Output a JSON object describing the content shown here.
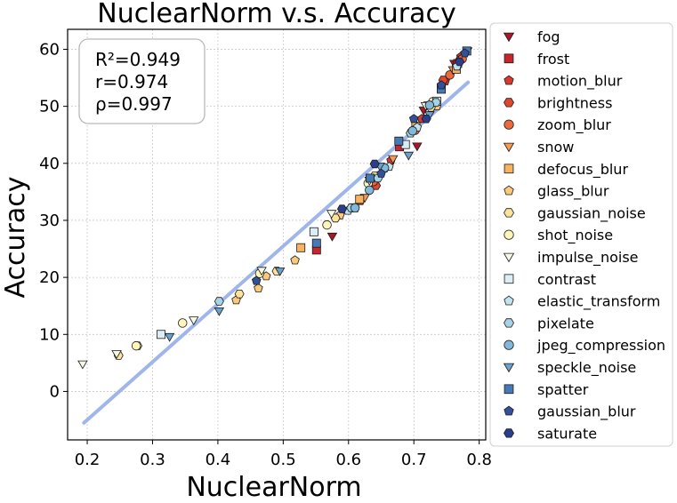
{
  "chart_data": {
    "type": "scatter",
    "title": "NuclearNorm  v.s.  Accuracy",
    "xlabel": "NuclearNorm",
    "ylabel": "Accuracy",
    "xlim": [
      0.17,
      0.81
    ],
    "ylim": [
      -8.5,
      63.5
    ],
    "xticks": [
      0.2,
      0.3,
      0.4,
      0.5,
      0.6,
      0.7,
      0.8
    ],
    "xtick_labels": [
      "0.2",
      "0.3",
      "0.4",
      "0.5",
      "0.6",
      "0.7",
      "0.8"
    ],
    "yticks": [
      0,
      10,
      20,
      30,
      40,
      50,
      60
    ],
    "ytick_labels": [
      "0",
      "10",
      "20",
      "30",
      "40",
      "50",
      "60"
    ],
    "grid": true,
    "legend_position": "outside-right",
    "stats": [
      "R²=0.949",
      "r=0.974",
      "ρ=0.997"
    ],
    "fit_line": {
      "x": [
        0.195,
        0.783
      ],
      "y": [
        -5.5,
        54.2
      ],
      "color": "#9fb6ea"
    },
    "series": [
      {
        "name": "fog",
        "marker": "triangle-down",
        "color": "#a8182a",
        "points": [
          [
            0.575,
            27.2
          ],
          [
            0.705,
            43.0
          ],
          [
            0.715,
            49.3
          ],
          [
            0.762,
            57.5
          ],
          [
            0.782,
            59.7
          ]
        ]
      },
      {
        "name": "frost",
        "marker": "square",
        "color": "#c6262c",
        "points": [
          [
            0.551,
            24.8
          ],
          [
            0.608,
            32.2
          ],
          [
            0.678,
            42.9
          ],
          [
            0.742,
            53.2
          ],
          [
            0.767,
            57.5
          ]
        ]
      },
      {
        "name": "motion_blur",
        "marker": "pentagon",
        "color": "#d73a2f",
        "points": [
          [
            0.618,
            33.4
          ],
          [
            0.665,
            40.5
          ],
          [
            0.712,
            47.8
          ],
          [
            0.748,
            54.4
          ],
          [
            0.772,
            58.7
          ]
        ]
      },
      {
        "name": "brightness",
        "marker": "hexagon",
        "color": "#e0472f",
        "points": [
          [
            0.642,
            36.1
          ],
          [
            0.745,
            54.6
          ],
          [
            0.77,
            58.1
          ]
        ]
      },
      {
        "name": "zoom_blur",
        "marker": "circle",
        "color": "#ec6a3c",
        "points": [
          [
            0.638,
            36.8
          ],
          [
            0.702,
            45.8
          ],
          [
            0.755,
            55.5
          ],
          [
            0.774,
            58.3
          ]
        ]
      },
      {
        "name": "snow",
        "marker": "triangle-down",
        "color": "#f79a56",
        "points": [
          [
            0.625,
            34.0
          ],
          [
            0.668,
            40.8
          ],
          [
            0.722,
            50.2
          ],
          [
            0.76,
            56.4
          ]
        ]
      },
      {
        "name": "defocus_blur",
        "marker": "square",
        "color": "#f7b35f",
        "points": [
          [
            0.527,
            25.2
          ],
          [
            0.617,
            33.7
          ],
          [
            0.703,
            46.5
          ],
          [
            0.765,
            56.5
          ]
        ]
      },
      {
        "name": "glass_blur",
        "marker": "pentagon",
        "color": "#fcc97a",
        "points": [
          [
            0.428,
            16.0
          ],
          [
            0.462,
            18.1
          ],
          [
            0.474,
            20.2
          ],
          [
            0.518,
            23.0
          ],
          [
            0.587,
            30.9
          ],
          [
            0.655,
            39.1
          ],
          [
            0.735,
            50.0
          ]
        ]
      },
      {
        "name": "gaussian_noise",
        "marker": "hexagon",
        "color": "#fde39a",
        "points": [
          [
            0.248,
            6.3
          ],
          [
            0.277,
            8.0
          ],
          [
            0.433,
            17.1
          ],
          [
            0.49,
            21.1
          ],
          [
            0.58,
            30.4
          ],
          [
            0.64,
            37.8
          ],
          [
            0.726,
            49.8
          ]
        ]
      },
      {
        "name": "shot_noise",
        "marker": "circle",
        "color": "#fef6b8",
        "points": [
          [
            0.275,
            8.0
          ],
          [
            0.346,
            12.0
          ],
          [
            0.464,
            20.7
          ],
          [
            0.567,
            29.2
          ],
          [
            0.63,
            36.5
          ],
          [
            0.729,
            50.8
          ]
        ]
      },
      {
        "name": "impulse_noise",
        "marker": "triangle-down",
        "color": "#f4f9e4",
        "points": [
          [
            0.193,
            4.8
          ],
          [
            0.245,
            6.6
          ],
          [
            0.363,
            12.5
          ],
          [
            0.467,
            21.2
          ],
          [
            0.574,
            31.2
          ],
          [
            0.632,
            37.0
          ],
          [
            0.718,
            50.1
          ]
        ]
      },
      {
        "name": "contrast",
        "marker": "square",
        "color": "#dbeef5",
        "points": [
          [
            0.313,
            10.0
          ],
          [
            0.547,
            28.0
          ],
          [
            0.687,
            43.3
          ],
          [
            0.735,
            50.9
          ]
        ]
      },
      {
        "name": "elastic_transform",
        "marker": "pentagon",
        "color": "#c1e3ee",
        "points": [
          [
            0.599,
            31.7
          ],
          [
            0.662,
            39.4
          ],
          [
            0.705,
            46.3
          ],
          [
            0.766,
            57.0
          ]
        ]
      },
      {
        "name": "pixelate",
        "marker": "hexagon",
        "color": "#a6d3e6",
        "points": [
          [
            0.402,
            15.8
          ],
          [
            0.604,
            32.2
          ],
          [
            0.645,
            37.4
          ],
          [
            0.695,
            45.3
          ],
          [
            0.734,
            50.7
          ]
        ]
      },
      {
        "name": "jpeg_compression",
        "marker": "circle",
        "color": "#82b8d9",
        "points": [
          [
            0.61,
            32.2
          ],
          [
            0.632,
            35.3
          ],
          [
            0.655,
            39.2
          ],
          [
            0.698,
            45.7
          ],
          [
            0.724,
            50.2
          ]
        ]
      },
      {
        "name": "speckle_noise",
        "marker": "triangle-down",
        "color": "#6aa1cd",
        "points": [
          [
            0.326,
            9.6
          ],
          [
            0.402,
            14.1
          ],
          [
            0.495,
            21.1
          ],
          [
            0.648,
            39.5
          ],
          [
            0.692,
            41.4
          ],
          [
            0.724,
            48.5
          ]
        ]
      },
      {
        "name": "spatter",
        "marker": "square",
        "color": "#4779b5",
        "points": [
          [
            0.551,
            26.0
          ],
          [
            0.633,
            37.4
          ],
          [
            0.677,
            43.9
          ],
          [
            0.742,
            53.0
          ],
          [
            0.781,
            59.7
          ]
        ]
      },
      {
        "name": "gaussian_blur",
        "marker": "pentagon",
        "color": "#34509a",
        "points": [
          [
            0.459,
            19.4
          ],
          [
            0.65,
            38.2
          ],
          [
            0.7,
            47.8
          ],
          [
            0.742,
            53.7
          ],
          [
            0.778,
            59.3
          ]
        ]
      },
      {
        "name": "saturate",
        "marker": "hexagon",
        "color": "#2a3e8c",
        "points": [
          [
            0.59,
            32.0
          ],
          [
            0.64,
            39.9
          ],
          [
            0.719,
            47.8
          ],
          [
            0.77,
            57.8
          ]
        ]
      }
    ]
  }
}
